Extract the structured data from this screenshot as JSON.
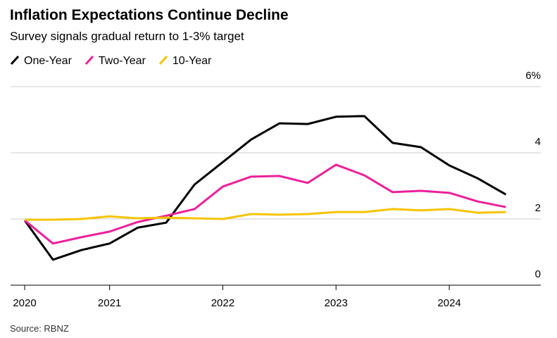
{
  "chart_data": {
    "type": "line",
    "title": "Inflation Expectations Continue Decline",
    "subtitle": "Survey signals gradual return to 1-3% target",
    "source": "Source: RBNZ",
    "categories": [
      "2020",
      null,
      null,
      "2021",
      null,
      null,
      null,
      "2022",
      null,
      null,
      null,
      "2023",
      null,
      null,
      null,
      "2024",
      null,
      null
    ],
    "series": [
      {
        "name": "One-Year",
        "color": "#000000",
        "values": [
          1.96,
          0.77,
          1.06,
          1.26,
          1.74,
          1.89,
          3.04,
          3.72,
          4.4,
          4.89,
          4.87,
          5.09,
          5.11,
          4.3,
          4.17,
          3.62,
          3.23,
          2.74
        ]
      },
      {
        "name": "Two-Year",
        "color": "#ee1f9b",
        "values": [
          1.96,
          1.26,
          1.45,
          1.62,
          1.91,
          2.1,
          2.3,
          2.98,
          3.28,
          3.3,
          3.09,
          3.64,
          3.32,
          2.81,
          2.85,
          2.79,
          2.53,
          2.36
        ]
      },
      {
        "name": "10-Year",
        "color": "#f5c400",
        "values": [
          1.98,
          1.98,
          2.0,
          2.08,
          2.02,
          2.04,
          2.02,
          2.0,
          2.15,
          2.13,
          2.15,
          2.21,
          2.21,
          2.3,
          2.26,
          2.3,
          2.19,
          2.21
        ]
      }
    ],
    "ylim": [
      0,
      6
    ],
    "yticks": [
      0,
      2,
      4,
      {
        "value": 6,
        "label": "6%"
      }
    ],
    "grid": true
  }
}
